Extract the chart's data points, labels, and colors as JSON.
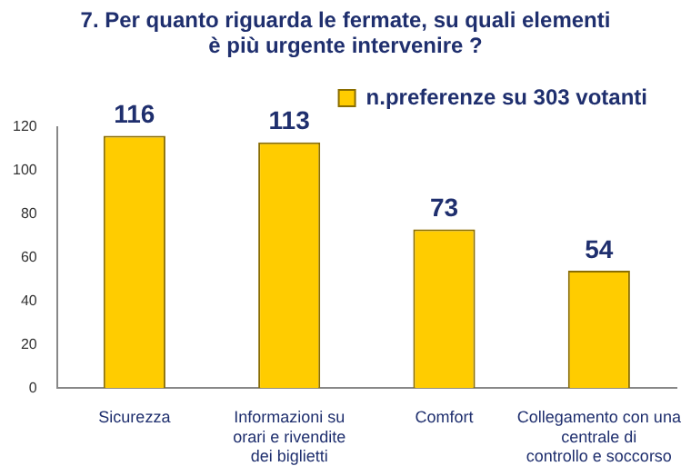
{
  "chart_data": {
    "type": "bar",
    "title": "7. Per quanto riguarda le fermate, su quali elementi è più urgente intervenire ?",
    "categories": [
      "Sicurezza",
      "Informazioni su orari e rivendite dei biglietti",
      "Comfort",
      "Collegamento con una centrale di controllo e soccorso"
    ],
    "series": [
      {
        "name": "n.preferenze su 303 votanti",
        "color": "#ffcc00",
        "values": [
          116,
          113,
          73,
          54
        ]
      }
    ],
    "ylim": [
      0,
      120
    ],
    "yticks": [
      0,
      20,
      40,
      60,
      80,
      100,
      120
    ],
    "grid": false,
    "legend": "top right",
    "data_labels": true
  }
}
